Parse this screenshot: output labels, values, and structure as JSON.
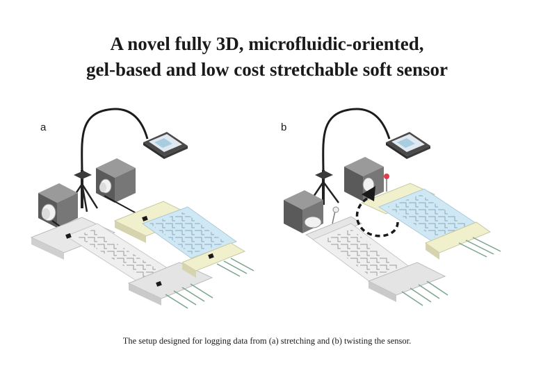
{
  "title": {
    "line1": "A novel fully 3D, microfluidic-oriented,",
    "line2": "gel-based and low cost stretchable soft sensor"
  },
  "panels": {
    "a": {
      "label": "a",
      "description": "stretching"
    },
    "b": {
      "label": "b",
      "description": "twisting"
    }
  },
  "caption": "The setup designed for logging data from (a) stretching and (b) twisting the sensor.",
  "colors": {
    "camera_dark": "#5a5a5a",
    "camera_mid": "#808080",
    "camera_light": "#a0a0a0",
    "cable": "#1c1c1c",
    "sensor_white": "#ececec",
    "sensor_blue": "#cfe8f4",
    "sensor_yellow": "#f1f0cd",
    "wire_green": "#7aa48e",
    "marker_red": "#e23c4b",
    "arrow": "#1a1a1a"
  },
  "icons": [
    "camera-icon",
    "tripod-icon",
    "tablet-icon",
    "curved-arrow-icon",
    "marker-pin-icon"
  ]
}
